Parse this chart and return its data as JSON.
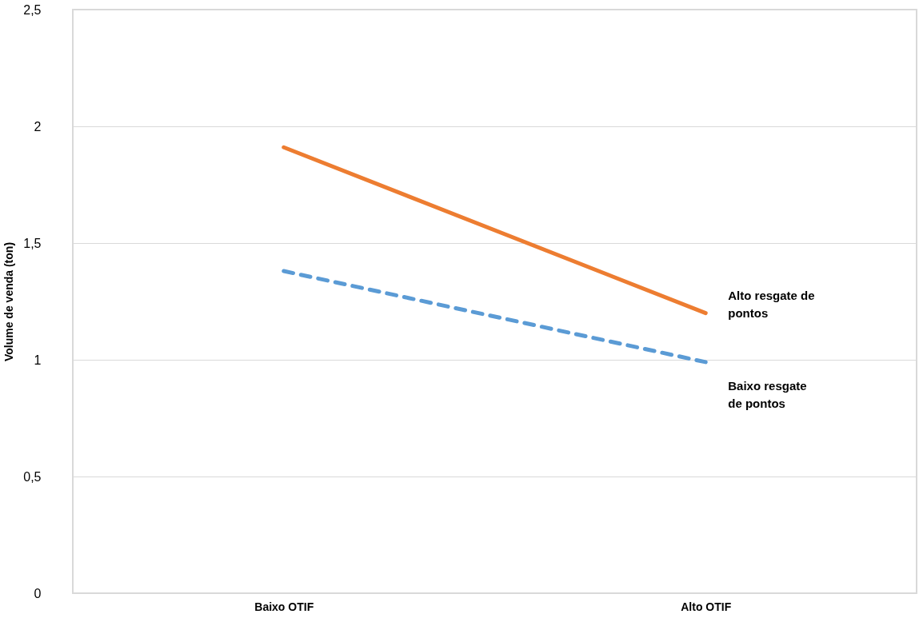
{
  "chart_data": {
    "type": "line",
    "ylabel": "Volume de venda (ton)",
    "categories": [
      "Baixo OTIF",
      "Alto OTIF"
    ],
    "series": [
      {
        "name": "Alto resgate de pontos",
        "color": "#ed7d31",
        "values": [
          1.91,
          1.2
        ],
        "line_style": "solid"
      },
      {
        "name": "Baixo resgate de pontos",
        "color": "#5b9bd5",
        "values": [
          1.38,
          0.99
        ],
        "line_style": "dashed"
      }
    ],
    "ylim": [
      0,
      2.5
    ],
    "yticks": [
      {
        "value": 0,
        "label": "0"
      },
      {
        "value": 0.5,
        "label": "0,5"
      },
      {
        "value": 1,
        "label": "1"
      },
      {
        "value": 1.5,
        "label": "1,5"
      },
      {
        "value": 2,
        "label": "2"
      },
      {
        "value": 2.5,
        "label": "2,5"
      }
    ],
    "grid": "y",
    "legend": false,
    "marker": "none"
  }
}
